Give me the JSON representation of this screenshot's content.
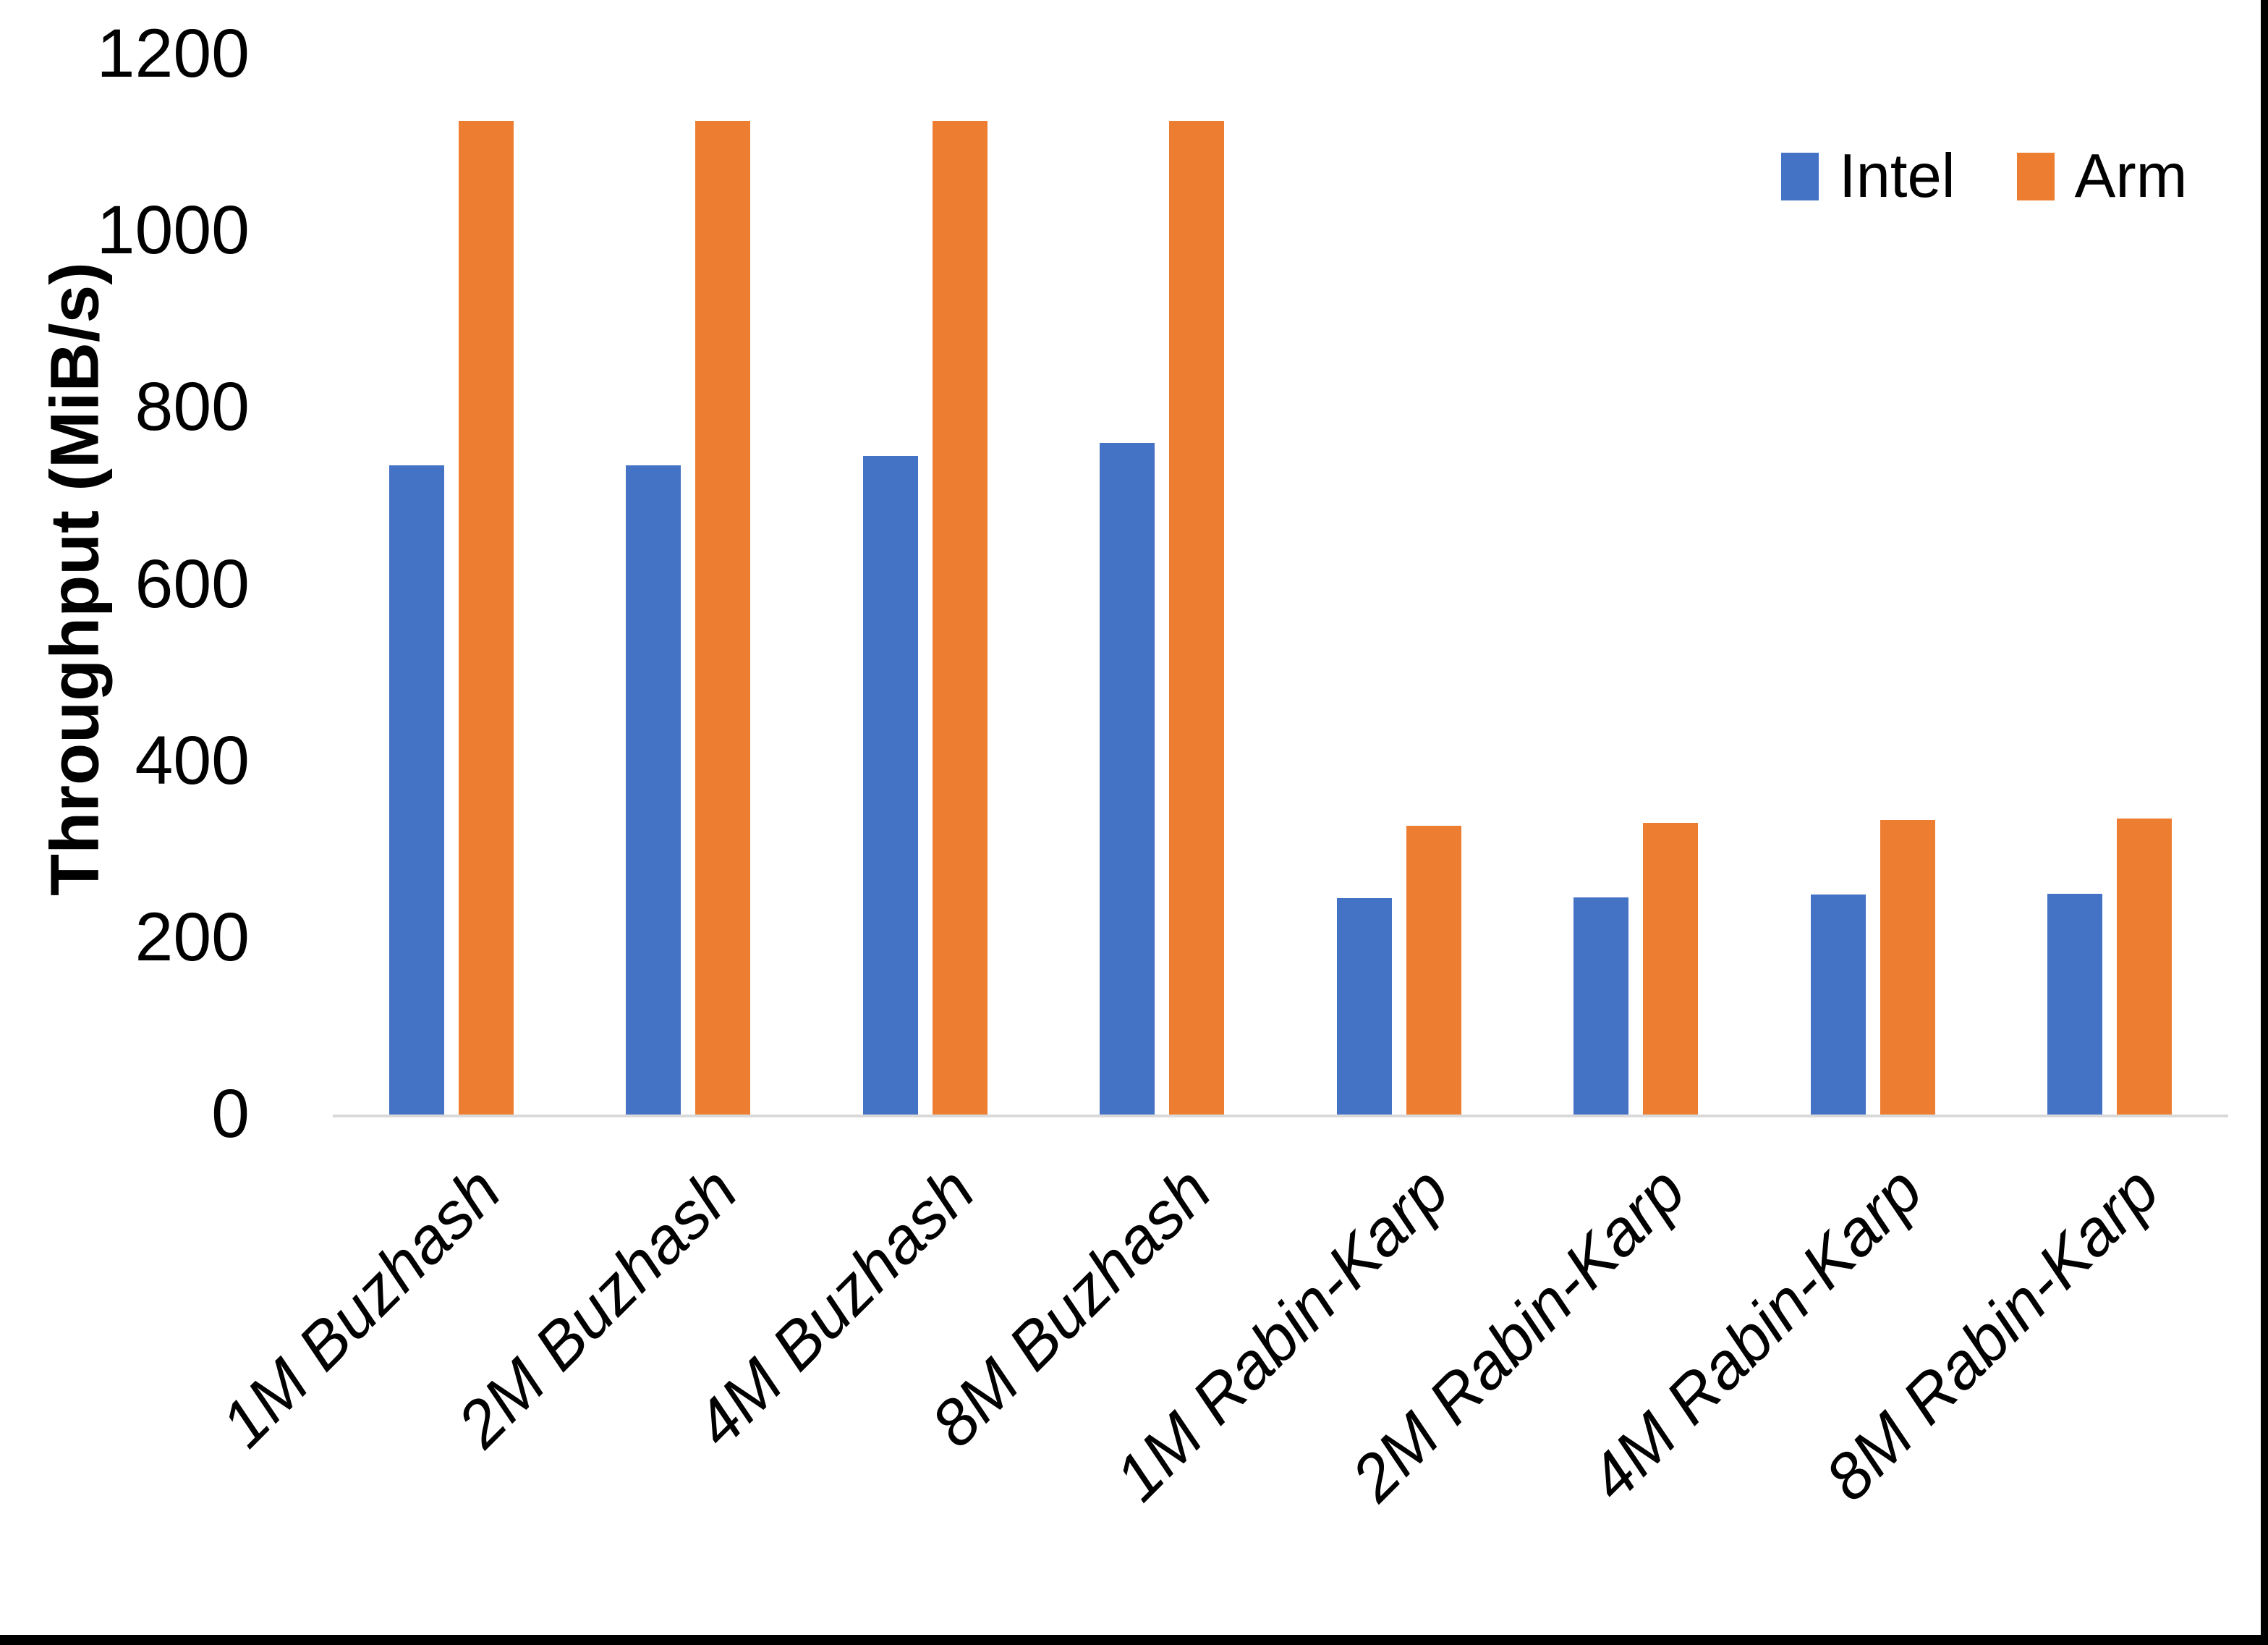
{
  "chart_data": {
    "type": "bar",
    "title": "",
    "ylabel": "Throughput (MiB/s)",
    "xlabel": "",
    "ylim": [
      0,
      1200
    ],
    "yticks": [
      0,
      200,
      400,
      600,
      800,
      1000,
      1200
    ],
    "grid": false,
    "legend_position": "top-right",
    "categories": [
      "1M Buzhash",
      "2M Buzhash",
      "4M Buzhash",
      "8M Buzhash",
      "1M Rabin-Karp",
      "2M Rabin-Karp",
      "4M Rabin-Karp",
      "8M Rabin-Karp"
    ],
    "series": [
      {
        "name": "Intel",
        "color": "#4472C4",
        "values": [
          735,
          735,
          745,
          760,
          245,
          246,
          249,
          250
        ]
      },
      {
        "name": "Arm",
        "color": "#ED7D31",
        "values": [
          1125,
          1125,
          1125,
          1125,
          327,
          330,
          333,
          335
        ]
      }
    ],
    "axis_line_color": "#D9D9D9",
    "text_color": "#000000"
  }
}
